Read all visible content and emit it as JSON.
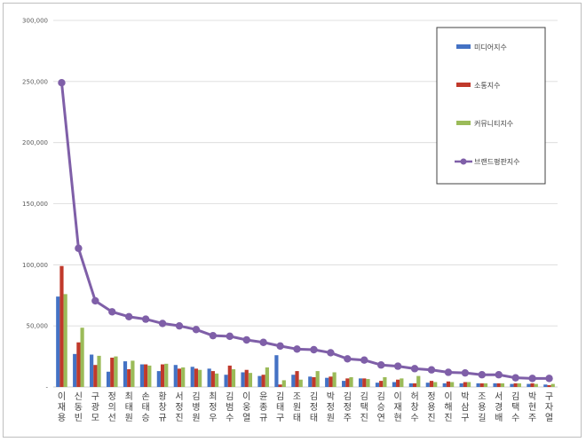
{
  "chart_data": {
    "type": "bar",
    "title": "",
    "xlabel": "",
    "ylabel": "",
    "ylim": [
      0,
      300000
    ],
    "yticks": [
      "-",
      "50,000",
      "100,000",
      "150,000",
      "200,000",
      "250,000",
      "300,000"
    ],
    "categories": [
      "이재용",
      "신동빈",
      "구광모",
      "정의선",
      "최태원",
      "손태승",
      "황창규",
      "서정진",
      "김병원",
      "최정우",
      "김범수",
      "이웅열",
      "윤종규",
      "김태구",
      "조원태",
      "김정태",
      "박정원",
      "김정주",
      "김택진",
      "김승연",
      "이재현",
      "허창수",
      "정용진",
      "이해진",
      "박삼구",
      "조용길",
      "서경배",
      "김택수",
      "박현주",
      "구자열"
    ],
    "series": [
      {
        "name": "미디어지수",
        "kind": "bar",
        "color": "#4472c4",
        "values": [
          74000,
          27000,
          26500,
          12500,
          21000,
          18500,
          13000,
          18000,
          16500,
          15000,
          10000,
          12000,
          9000,
          26000,
          10000,
          8500,
          7500,
          5000,
          7000,
          3500,
          4000,
          3000,
          3500,
          3000,
          3000,
          3000,
          3000,
          2500,
          2500,
          2000
        ]
      },
      {
        "name": "소통지수",
        "kind": "bar",
        "color": "#c0392b",
        "values": [
          99000,
          36500,
          18000,
          24000,
          14500,
          18500,
          18500,
          15000,
          15000,
          13000,
          17500,
          14000,
          10000,
          2000,
          13000,
          8000,
          8500,
          7000,
          7000,
          5000,
          6000,
          3000,
          5000,
          4500,
          4000,
          3000,
          3000,
          3000,
          3000,
          1500
        ]
      },
      {
        "name": "커뮤니티지수",
        "kind": "bar",
        "color": "#9bbb59",
        "values": [
          76000,
          48500,
          25500,
          25000,
          21500,
          17500,
          19000,
          16000,
          14000,
          11000,
          14500,
          11500,
          16000,
          5500,
          6000,
          13000,
          12000,
          8000,
          6500,
          8000,
          7000,
          9000,
          4000,
          4000,
          4000,
          3000,
          3000,
          3000,
          2500,
          2500
        ]
      },
      {
        "name": "브랜드평판지수",
        "kind": "line",
        "color": "#7f5fa8",
        "values": [
          249000,
          113500,
          70500,
          61500,
          57500,
          55500,
          52000,
          50000,
          47000,
          42000,
          41500,
          38500,
          36500,
          33500,
          31000,
          30500,
          28000,
          23000,
          22000,
          18000,
          17000,
          15000,
          14000,
          12000,
          11500,
          10000,
          10000,
          7500,
          7000,
          7000
        ]
      }
    ],
    "legend": "top-right"
  }
}
